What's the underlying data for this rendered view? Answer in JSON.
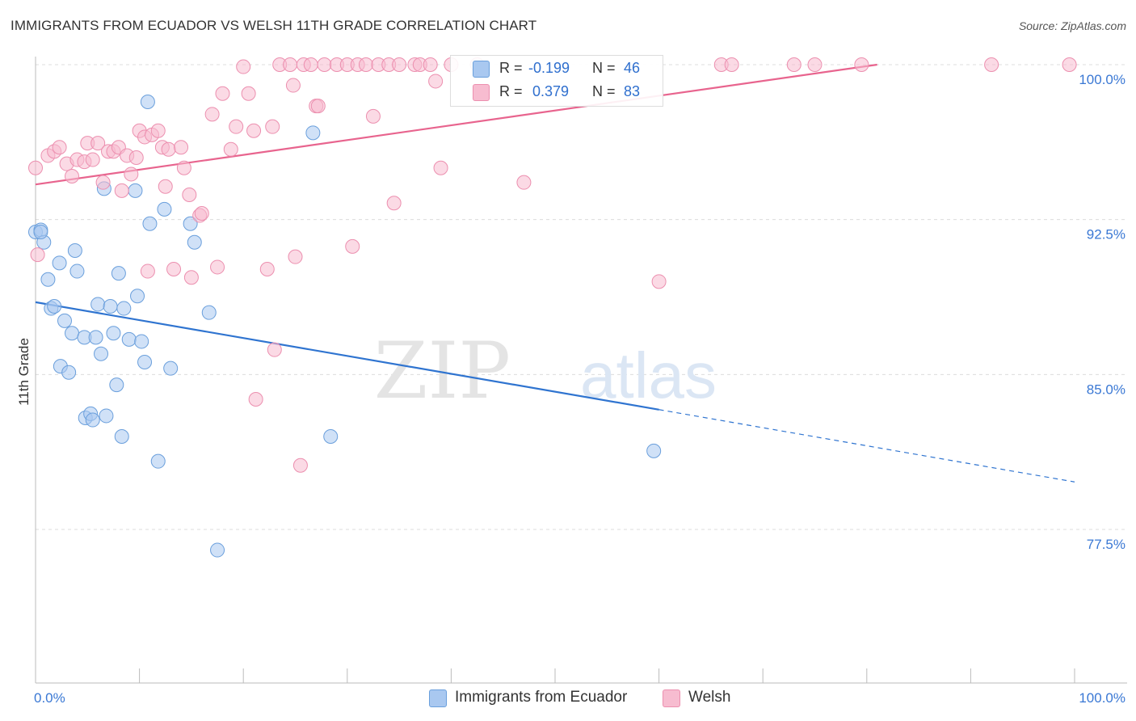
{
  "header": {
    "title": "IMMIGRANTS FROM ECUADOR VS WELSH 11TH GRADE CORRELATION CHART",
    "source": "Source: ZipAtlas.com"
  },
  "watermark": {
    "zip": "ZIP",
    "atlas": "atlas"
  },
  "legend": {
    "rows": [
      {
        "r_label": "R =",
        "r_value": "-0.199",
        "n_label": "N =",
        "n_value": "46",
        "color": "#a9c8f0"
      },
      {
        "r_label": "R =",
        "r_value": " 0.379",
        "n_label": "N =",
        "n_value": "83",
        "color": "#f7bcd0"
      }
    ]
  },
  "chart_data": {
    "type": "scatter",
    "title": "IMMIGRANTS FROM ECUADOR VS WELSH 11TH GRADE CORRELATION CHART",
    "xlabel": "",
    "ylabel": "11th Grade",
    "xlim": [
      0,
      100
    ],
    "ylim": [
      71,
      101
    ],
    "x_tick_labels": [
      "0.0%",
      "100.0%"
    ],
    "y_ticks": [
      77.5,
      85.0,
      92.5,
      100.0
    ],
    "y_tick_labels": [
      "77.5%",
      "85.0%",
      "92.5%",
      "100.0%"
    ],
    "grid": true,
    "legend_position": "top-center",
    "series": [
      {
        "name": "Immigrants from Ecuador",
        "color": "#a9c8f0",
        "stroke": "#6a9fdc",
        "line_color": "#2f74d0",
        "trend": {
          "x0": 0,
          "y0": 88.5,
          "x1": 60,
          "y1": 83.3,
          "dashed_to_x": 100,
          "dashed_to_y": 79.8
        },
        "points": [
          [
            0.0,
            91.9
          ],
          [
            0.5,
            92.0
          ],
          [
            0.8,
            91.4
          ],
          [
            1.2,
            89.6
          ],
          [
            1.5,
            88.2
          ],
          [
            1.8,
            88.3
          ],
          [
            2.3,
            90.4
          ],
          [
            2.4,
            85.4
          ],
          [
            2.8,
            87.6
          ],
          [
            3.2,
            85.1
          ],
          [
            3.5,
            87.0
          ],
          [
            3.8,
            91.0
          ],
          [
            4.0,
            90.0
          ],
          [
            4.7,
            86.8
          ],
          [
            4.8,
            82.9
          ],
          [
            5.3,
            83.1
          ],
          [
            5.5,
            82.8
          ],
          [
            5.8,
            86.8
          ],
          [
            6.0,
            88.4
          ],
          [
            6.3,
            86.0
          ],
          [
            6.6,
            94.0
          ],
          [
            6.8,
            83.0
          ],
          [
            7.2,
            88.3
          ],
          [
            7.5,
            87.0
          ],
          [
            7.8,
            84.5
          ],
          [
            8.0,
            89.9
          ],
          [
            8.3,
            82.0
          ],
          [
            8.5,
            88.2
          ],
          [
            9.0,
            86.7
          ],
          [
            9.6,
            93.9
          ],
          [
            9.8,
            88.8
          ],
          [
            10.2,
            86.6
          ],
          [
            10.5,
            85.6
          ],
          [
            10.8,
            98.2
          ],
          [
            11.0,
            92.3
          ],
          [
            11.8,
            80.8
          ],
          [
            12.4,
            93.0
          ],
          [
            13.0,
            85.3
          ],
          [
            14.9,
            92.3
          ],
          [
            15.3,
            91.4
          ],
          [
            16.7,
            88.0
          ],
          [
            17.5,
            76.5
          ],
          [
            26.7,
            96.7
          ],
          [
            28.4,
            82.0
          ],
          [
            59.5,
            81.3
          ],
          [
            0.5,
            91.9
          ]
        ]
      },
      {
        "name": "Welsh",
        "color": "#f7bcd0",
        "stroke": "#ec8faf",
        "line_color": "#e8648e",
        "trend": {
          "x0": 0,
          "y0": 94.2,
          "x1": 81,
          "y1": 100.0
        },
        "points": [
          [
            0.0,
            95.0
          ],
          [
            0.2,
            90.8
          ],
          [
            1.2,
            95.6
          ],
          [
            1.8,
            95.8
          ],
          [
            2.3,
            96.0
          ],
          [
            3.0,
            95.2
          ],
          [
            3.5,
            94.6
          ],
          [
            4.0,
            95.4
          ],
          [
            4.7,
            95.3
          ],
          [
            5.0,
            96.2
          ],
          [
            5.5,
            95.4
          ],
          [
            6.0,
            96.2
          ],
          [
            6.5,
            94.3
          ],
          [
            7.0,
            95.8
          ],
          [
            7.5,
            95.8
          ],
          [
            8.0,
            96.0
          ],
          [
            8.3,
            93.9
          ],
          [
            8.8,
            95.6
          ],
          [
            9.2,
            94.7
          ],
          [
            9.7,
            95.5
          ],
          [
            10.0,
            96.8
          ],
          [
            10.5,
            96.5
          ],
          [
            10.8,
            90.0
          ],
          [
            11.2,
            96.6
          ],
          [
            11.8,
            96.8
          ],
          [
            12.2,
            96.0
          ],
          [
            12.5,
            94.1
          ],
          [
            12.8,
            95.9
          ],
          [
            13.3,
            90.1
          ],
          [
            14.0,
            96.0
          ],
          [
            14.3,
            95.0
          ],
          [
            14.8,
            93.7
          ],
          [
            15.0,
            89.7
          ],
          [
            15.8,
            92.7
          ],
          [
            16.0,
            92.8
          ],
          [
            17.0,
            97.6
          ],
          [
            17.5,
            90.2
          ],
          [
            18.0,
            98.6
          ],
          [
            18.8,
            95.9
          ],
          [
            19.3,
            97.0
          ],
          [
            20.0,
            99.9
          ],
          [
            20.5,
            98.6
          ],
          [
            21.0,
            96.8
          ],
          [
            21.2,
            83.8
          ],
          [
            22.3,
            90.1
          ],
          [
            22.8,
            97.0
          ],
          [
            23.0,
            86.2
          ],
          [
            23.5,
            100.0
          ],
          [
            24.5,
            100.0
          ],
          [
            24.8,
            99.0
          ],
          [
            25.0,
            90.7
          ],
          [
            25.5,
            80.6
          ],
          [
            25.8,
            100.0
          ],
          [
            26.5,
            100.0
          ],
          [
            27.0,
            98.0
          ],
          [
            27.2,
            98.0
          ],
          [
            27.8,
            100.0
          ],
          [
            29.0,
            100.0
          ],
          [
            30.0,
            100.0
          ],
          [
            30.5,
            91.2
          ],
          [
            31.0,
            100.0
          ],
          [
            31.8,
            100.0
          ],
          [
            32.5,
            97.5
          ],
          [
            33.0,
            100.0
          ],
          [
            34.0,
            100.0
          ],
          [
            34.5,
            93.3
          ],
          [
            35.0,
            100.0
          ],
          [
            36.5,
            100.0
          ],
          [
            37.0,
            100.0
          ],
          [
            38.0,
            100.0
          ],
          [
            38.5,
            99.2
          ],
          [
            39.0,
            95.0
          ],
          [
            40.0,
            100.0
          ],
          [
            42.5,
            100.0
          ],
          [
            47.0,
            94.3
          ],
          [
            60.0,
            89.5
          ],
          [
            66.0,
            100.0
          ],
          [
            67.0,
            100.0
          ],
          [
            73.0,
            100.0
          ],
          [
            75.0,
            100.0
          ],
          [
            79.5,
            100.0
          ],
          [
            92.0,
            100.0
          ],
          [
            99.5,
            100.0
          ]
        ]
      }
    ]
  },
  "bottom_legend": [
    {
      "label": "Immigrants from Ecuador",
      "color": "#a9c8f0",
      "border": "#6a9fdc"
    },
    {
      "label": "Welsh",
      "color": "#f7bcd0",
      "border": "#ec8faf"
    }
  ]
}
